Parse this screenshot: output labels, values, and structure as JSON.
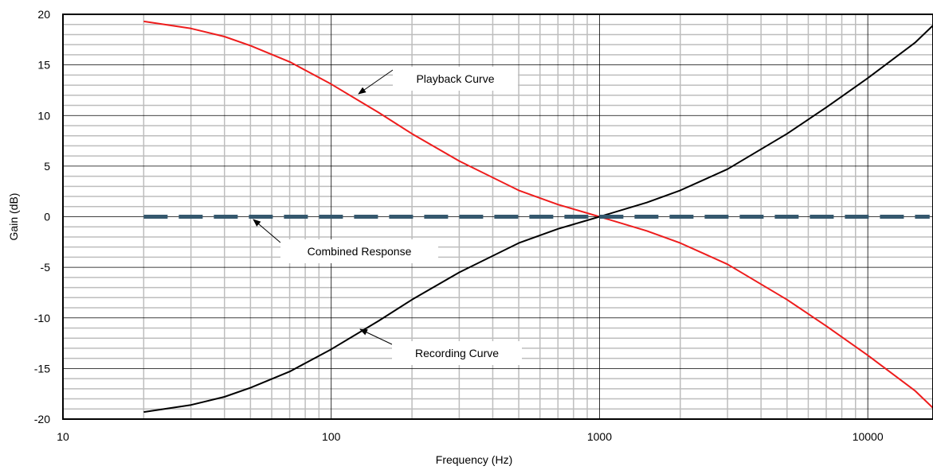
{
  "chart_data": {
    "type": "line",
    "xlabel": "Frequency (Hz)",
    "ylabel": "Gain (dB)",
    "xscale": "log",
    "xlim": [
      10,
      17500
    ],
    "ylim": [
      -20,
      20
    ],
    "xticks": [
      "10",
      "100",
      "1000",
      "10000"
    ],
    "yticks": [
      "20",
      "15",
      "10",
      "5",
      "0",
      "-5",
      "-10",
      "-15",
      "-20"
    ],
    "grid": true,
    "series": [
      {
        "name": "Playback Curve",
        "color": "#ee1c1c",
        "style": "solid",
        "x": [
          20,
          30,
          40,
          50,
          70,
          100,
          150,
          200,
          300,
          500,
          700,
          1000,
          1500,
          2000,
          3000,
          5000,
          7000,
          10000,
          15000,
          17500
        ],
        "y": [
          19.3,
          18.6,
          17.8,
          16.9,
          15.3,
          13.1,
          10.3,
          8.2,
          5.5,
          2.6,
          1.2,
          0.0,
          -1.4,
          -2.6,
          -4.7,
          -8.2,
          -10.8,
          -13.7,
          -17.2,
          -18.9
        ]
      },
      {
        "name": "Recording Curve",
        "color": "#000000",
        "style": "solid",
        "x": [
          20,
          30,
          40,
          50,
          70,
          100,
          150,
          200,
          300,
          500,
          700,
          1000,
          1500,
          2000,
          3000,
          5000,
          7000,
          10000,
          15000,
          17500
        ],
        "y": [
          -19.3,
          -18.6,
          -17.8,
          -16.9,
          -15.3,
          -13.1,
          -10.3,
          -8.2,
          -5.5,
          -2.6,
          -1.2,
          0.0,
          1.4,
          2.6,
          4.7,
          8.2,
          10.8,
          13.7,
          17.2,
          18.9
        ]
      },
      {
        "name": "Combined Response",
        "color": "#35586e",
        "style": "dashed",
        "x": [
          20,
          17000
        ],
        "y": [
          0,
          0
        ]
      }
    ],
    "annotations": [
      {
        "text": "Playback Curve",
        "series": "Playback Curve"
      },
      {
        "text": "Combined Response",
        "series": "Combined Response"
      },
      {
        "text": "Recording Curve",
        "series": "Recording Curve"
      }
    ]
  }
}
